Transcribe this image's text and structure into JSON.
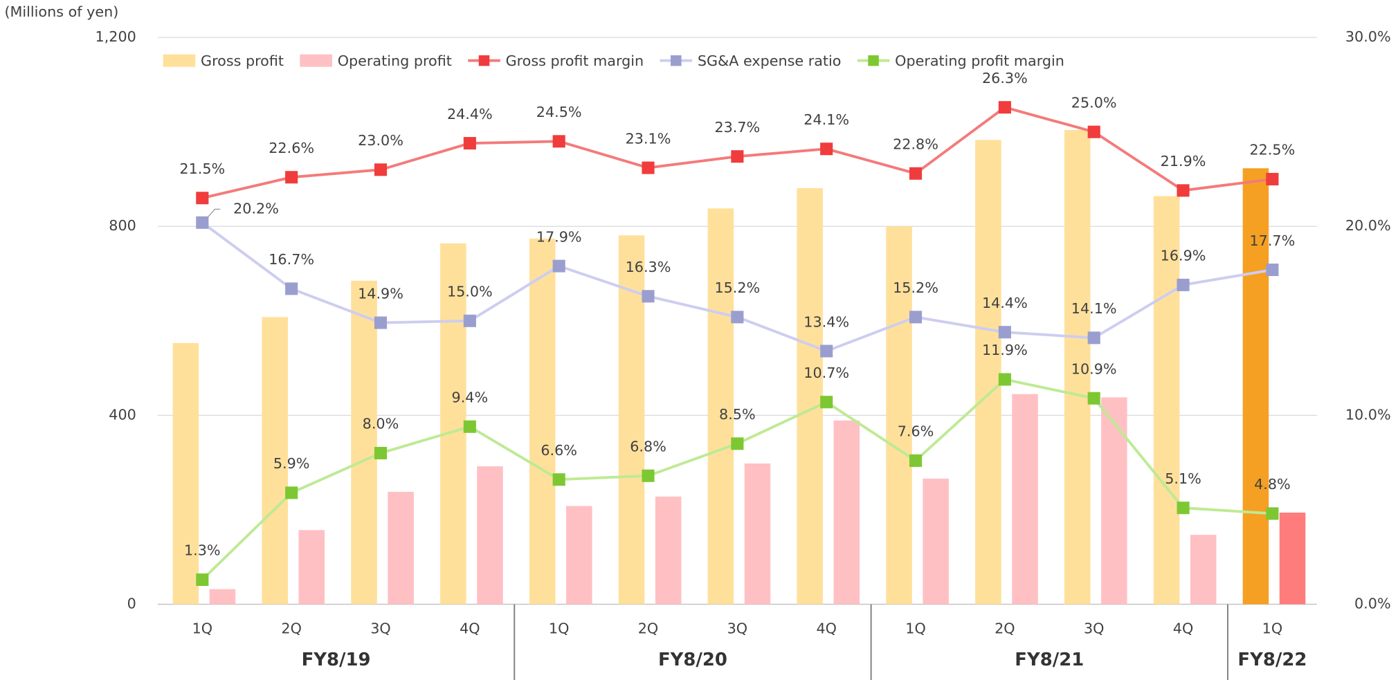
{
  "chart_data": {
    "type": "bar-line",
    "y_label": "(Millions of yen)",
    "groups": [
      {
        "name": "FY8/19",
        "categories": [
          "1Q",
          "2Q",
          "3Q",
          "4Q"
        ]
      },
      {
        "name": "FY8/20",
        "categories": [
          "1Q",
          "2Q",
          "3Q",
          "4Q"
        ]
      },
      {
        "name": "FY8/21",
        "categories": [
          "1Q",
          "2Q",
          "3Q",
          "4Q"
        ]
      },
      {
        "name": "FY8/22",
        "categories": [
          "1Q"
        ]
      }
    ],
    "ylim": [
      0,
      1200
    ],
    "yticks": [
      0,
      400,
      800,
      {
        "value": 1200,
        "label": "1,200"
      }
    ],
    "y2lim": [
      0,
      30
    ],
    "y2ticks": [
      {
        "value": 0,
        "label": "0.0%"
      },
      {
        "value": 10,
        "label": "10.0%"
      },
      {
        "value": 20,
        "label": "20.0%"
      },
      {
        "value": 30,
        "label": "30.0%"
      }
    ],
    "grid": true,
    "legend": "top",
    "series": [
      {
        "name": "Gross profit",
        "kind": "bar",
        "color": "#FFE09B",
        "colors": [
          "#FFE09B",
          "#FFE09B",
          "#FFE09B",
          "#FFE09B",
          "#FFE09B",
          "#FFE09B",
          "#FFE09B",
          "#FFE09B",
          "#FFE09B",
          "#FFE09B",
          "#FFE09B",
          "#FFE09B",
          "#F5A022"
        ],
        "values": [
          553,
          608,
          685,
          764,
          774,
          781,
          838,
          881,
          800,
          983,
          1004,
          864,
          923
        ]
      },
      {
        "name": "Operating profit",
        "kind": "bar",
        "color": "#FFC0C4",
        "colors": [
          "#FFC0C4",
          "#FFC0C4",
          "#FFC0C4",
          "#FFC0C4",
          "#FFC0C4",
          "#FFC0C4",
          "#FFC0C4",
          "#FFC0C4",
          "#FFC0C4",
          "#FFC0C4",
          "#FFC0C4",
          "#FFC0C4",
          "#FF7C7C"
        ],
        "values": [
          32,
          157,
          238,
          292,
          208,
          228,
          298,
          389,
          266,
          445,
          438,
          147,
          194
        ]
      },
      {
        "name": "Gross profit margin",
        "kind": "line",
        "axis": "y2",
        "color": "#F47A7A",
        "marker_color": "#F03C3C",
        "values": [
          21.5,
          22.6,
          23.0,
          24.4,
          24.5,
          23.1,
          23.7,
          24.1,
          22.8,
          26.3,
          25.0,
          21.9,
          22.5
        ],
        "value_labels": [
          "21.5%",
          "22.6%",
          "23.0%",
          "24.4%",
          "24.5%",
          "23.1%",
          "23.7%",
          "24.1%",
          "22.8%",
          "26.3%",
          "25.0%",
          "21.9%",
          "22.5%"
        ]
      },
      {
        "name": "SG&A expense ratio",
        "kind": "line",
        "axis": "y2",
        "color": "#CDCDF0",
        "marker_color": "#9A9ECF",
        "values": [
          20.2,
          16.7,
          14.9,
          15.0,
          17.9,
          16.3,
          15.2,
          13.4,
          15.2,
          14.4,
          14.1,
          16.9,
          17.7
        ],
        "value_labels": [
          "20.2%",
          "16.7%",
          "14.9%",
          "15.0%",
          "17.9%",
          "16.3%",
          "15.2%",
          "13.4%",
          "15.2%",
          "14.4%",
          "14.1%",
          "16.9%",
          "17.7%"
        ]
      },
      {
        "name": "Operating profit margin",
        "kind": "line",
        "axis": "y2",
        "color": "#BEEA94",
        "marker_color": "#7DC832",
        "values": [
          1.3,
          5.9,
          8.0,
          9.4,
          6.6,
          6.8,
          8.5,
          10.7,
          7.6,
          11.9,
          10.9,
          5.1,
          4.8
        ],
        "value_labels": [
          "1.3%",
          "5.9%",
          "8.0%",
          "9.4%",
          "6.6%",
          "6.8%",
          "8.5%",
          "10.7%",
          "7.6%",
          "11.9%",
          "10.9%",
          "5.1%",
          "4.8%"
        ]
      }
    ]
  }
}
